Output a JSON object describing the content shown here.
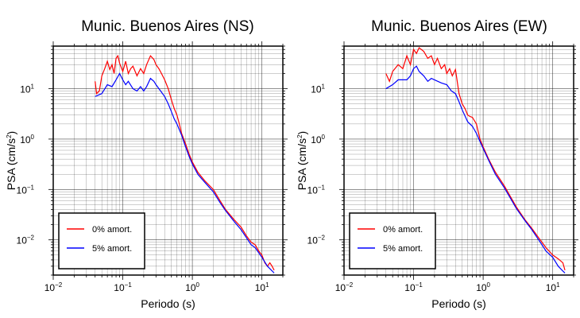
{
  "chart_data": [
    {
      "type": "line",
      "title": "Munic. Buenos Aires (NS)",
      "xlabel": "Periodo (s)",
      "ylabel": "PSA (cm/s",
      "ylabel_sup": "2",
      "ylabel_end": ")",
      "x_scale": "log",
      "y_scale": "log",
      "xlim": [
        0.01,
        20
      ],
      "ylim": [
        0.002,
        70
      ],
      "grid": true,
      "legend_position": "bottom-left",
      "x_ticks": [
        {
          "value": 0.01,
          "base": "10",
          "exp": "−2"
        },
        {
          "value": 0.1,
          "base": "10",
          "exp": "−1"
        },
        {
          "value": 1,
          "base": "10",
          "exp": "0"
        },
        {
          "value": 10,
          "base": "10",
          "exp": "1"
        }
      ],
      "y_ticks": [
        {
          "value": 0.01,
          "base": "10",
          "exp": "−2"
        },
        {
          "value": 0.1,
          "base": "10",
          "exp": "−1"
        },
        {
          "value": 1,
          "base": "10",
          "exp": "0"
        },
        {
          "value": 10,
          "base": "10",
          "exp": "1"
        }
      ],
      "series": [
        {
          "name": "0% amort.",
          "color": "#ff0000",
          "points": [
            [
              0.04,
              14
            ],
            [
              0.042,
              8
            ],
            [
              0.046,
              9
            ],
            [
              0.05,
              18
            ],
            [
              0.055,
              25
            ],
            [
              0.06,
              35
            ],
            [
              0.065,
              24
            ],
            [
              0.07,
              30
            ],
            [
              0.075,
              20
            ],
            [
              0.08,
              40
            ],
            [
              0.085,
              45
            ],
            [
              0.09,
              32
            ],
            [
              0.1,
              22
            ],
            [
              0.11,
              35
            ],
            [
              0.12,
              20
            ],
            [
              0.13,
              25
            ],
            [
              0.14,
              28
            ],
            [
              0.16,
              18
            ],
            [
              0.18,
              25
            ],
            [
              0.2,
              20
            ],
            [
              0.22,
              30
            ],
            [
              0.25,
              45
            ],
            [
              0.28,
              38
            ],
            [
              0.3,
              30
            ],
            [
              0.33,
              25
            ],
            [
              0.36,
              20
            ],
            [
              0.4,
              15
            ],
            [
              0.45,
              10
            ],
            [
              0.5,
              6
            ],
            [
              0.55,
              4
            ],
            [
              0.6,
              3
            ],
            [
              0.65,
              2
            ],
            [
              0.7,
              1.3
            ],
            [
              0.8,
              0.8
            ],
            [
              0.9,
              0.5
            ],
            [
              1.0,
              0.35
            ],
            [
              1.2,
              0.22
            ],
            [
              1.5,
              0.15
            ],
            [
              2.0,
              0.1
            ],
            [
              2.5,
              0.06
            ],
            [
              3.0,
              0.04
            ],
            [
              4.0,
              0.025
            ],
            [
              5.0,
              0.018
            ],
            [
              6.0,
              0.012
            ],
            [
              7.0,
              0.009
            ],
            [
              8.0,
              0.008
            ],
            [
              9.0,
              0.006
            ],
            [
              10.0,
              0.005
            ],
            [
              11.0,
              0.0035
            ],
            [
              12.0,
              0.003
            ],
            [
              13.0,
              0.0035
            ],
            [
              14.0,
              0.003
            ],
            [
              15.0,
              0.0025
            ]
          ]
        },
        {
          "name": "5% amort.",
          "color": "#0000ff",
          "points": [
            [
              0.04,
              7
            ],
            [
              0.045,
              7.5
            ],
            [
              0.05,
              8
            ],
            [
              0.06,
              12
            ],
            [
              0.07,
              11
            ],
            [
              0.08,
              15
            ],
            [
              0.09,
              20
            ],
            [
              0.1,
              15
            ],
            [
              0.11,
              12
            ],
            [
              0.12,
              14
            ],
            [
              0.14,
              10
            ],
            [
              0.16,
              9
            ],
            [
              0.18,
              11
            ],
            [
              0.2,
              9
            ],
            [
              0.22,
              11
            ],
            [
              0.25,
              16
            ],
            [
              0.28,
              14
            ],
            [
              0.3,
              12
            ],
            [
              0.35,
              9
            ],
            [
              0.4,
              7
            ],
            [
              0.45,
              5
            ],
            [
              0.5,
              3.5
            ],
            [
              0.55,
              2.5
            ],
            [
              0.6,
              2
            ],
            [
              0.7,
              1.2
            ],
            [
              0.8,
              0.7
            ],
            [
              0.9,
              0.45
            ],
            [
              1.0,
              0.32
            ],
            [
              1.2,
              0.2
            ],
            [
              1.5,
              0.14
            ],
            [
              2.0,
              0.09
            ],
            [
              2.5,
              0.055
            ],
            [
              3.0,
              0.038
            ],
            [
              4.0,
              0.023
            ],
            [
              5.0,
              0.016
            ],
            [
              6.0,
              0.011
            ],
            [
              7.0,
              0.008
            ],
            [
              8.0,
              0.007
            ],
            [
              10.0,
              0.0045
            ],
            [
              12.0,
              0.003
            ],
            [
              15.0,
              0.0022
            ]
          ]
        }
      ]
    },
    {
      "type": "line",
      "title": "Munic. Buenos Aires (EW)",
      "xlabel": "Periodo (s)",
      "ylabel": "PSA (cm/s",
      "ylabel_sup": "2",
      "ylabel_end": ")",
      "x_scale": "log",
      "y_scale": "log",
      "xlim": [
        0.01,
        20
      ],
      "ylim": [
        0.002,
        70
      ],
      "grid": true,
      "legend_position": "bottom-left",
      "x_ticks": [
        {
          "value": 0.01,
          "base": "10",
          "exp": "−2"
        },
        {
          "value": 0.1,
          "base": "10",
          "exp": "−1"
        },
        {
          "value": 1,
          "base": "10",
          "exp": "0"
        },
        {
          "value": 10,
          "base": "10",
          "exp": "1"
        }
      ],
      "y_ticks": [
        {
          "value": 0.01,
          "base": "10",
          "exp": "−2"
        },
        {
          "value": 0.1,
          "base": "10",
          "exp": "−1"
        },
        {
          "value": 1,
          "base": "10",
          "exp": "0"
        },
        {
          "value": 10,
          "base": "10",
          "exp": "1"
        }
      ],
      "series": [
        {
          "name": "0% amort.",
          "color": "#ff0000",
          "points": [
            [
              0.04,
              20
            ],
            [
              0.045,
              14
            ],
            [
              0.05,
              22
            ],
            [
              0.06,
              30
            ],
            [
              0.07,
              25
            ],
            [
              0.08,
              45
            ],
            [
              0.09,
              30
            ],
            [
              0.1,
              60
            ],
            [
              0.11,
              50
            ],
            [
              0.12,
              65
            ],
            [
              0.14,
              55
            ],
            [
              0.16,
              40
            ],
            [
              0.18,
              45
            ],
            [
              0.2,
              30
            ],
            [
              0.22,
              40
            ],
            [
              0.25,
              25
            ],
            [
              0.28,
              30
            ],
            [
              0.3,
              20
            ],
            [
              0.33,
              25
            ],
            [
              0.36,
              18
            ],
            [
              0.4,
              24
            ],
            [
              0.45,
              8
            ],
            [
              0.5,
              5
            ],
            [
              0.55,
              4
            ],
            [
              0.6,
              3
            ],
            [
              0.65,
              2.8
            ],
            [
              0.7,
              2.7
            ],
            [
              0.8,
              2
            ],
            [
              0.9,
              1
            ],
            [
              1.0,
              0.7
            ],
            [
              1.2,
              0.4
            ],
            [
              1.5,
              0.22
            ],
            [
              2.0,
              0.12
            ],
            [
              2.5,
              0.07
            ],
            [
              3.0,
              0.045
            ],
            [
              4.0,
              0.025
            ],
            [
              5.0,
              0.017
            ],
            [
              6.0,
              0.012
            ],
            [
              7.0,
              0.009
            ],
            [
              8.0,
              0.007
            ],
            [
              10.0,
              0.005
            ],
            [
              12.0,
              0.0042
            ],
            [
              14.0,
              0.0035
            ],
            [
              15.0,
              0.0025
            ]
          ]
        },
        {
          "name": "5% amort.",
          "color": "#0000ff",
          "points": [
            [
              0.04,
              10
            ],
            [
              0.05,
              12
            ],
            [
              0.06,
              15
            ],
            [
              0.08,
              15
            ],
            [
              0.09,
              18
            ],
            [
              0.1,
              25
            ],
            [
              0.11,
              28
            ],
            [
              0.12,
              22
            ],
            [
              0.14,
              18
            ],
            [
              0.16,
              14
            ],
            [
              0.18,
              16
            ],
            [
              0.2,
              15
            ],
            [
              0.25,
              13
            ],
            [
              0.3,
              12
            ],
            [
              0.35,
              9
            ],
            [
              0.4,
              8
            ],
            [
              0.45,
              5.5
            ],
            [
              0.5,
              3.8
            ],
            [
              0.6,
              2.2
            ],
            [
              0.7,
              1.8
            ],
            [
              0.8,
              1.3
            ],
            [
              0.9,
              0.9
            ],
            [
              1.0,
              0.65
            ],
            [
              1.2,
              0.38
            ],
            [
              1.5,
              0.2
            ],
            [
              2.0,
              0.11
            ],
            [
              2.5,
              0.065
            ],
            [
              3.0,
              0.042
            ],
            [
              4.0,
              0.024
            ],
            [
              5.0,
              0.016
            ],
            [
              6.0,
              0.011
            ],
            [
              7.0,
              0.008
            ],
            [
              8.0,
              0.006
            ],
            [
              10.0,
              0.0045
            ],
            [
              12.0,
              0.003
            ],
            [
              14.0,
              0.0024
            ],
            [
              15.0,
              0.0022
            ]
          ]
        }
      ]
    }
  ]
}
